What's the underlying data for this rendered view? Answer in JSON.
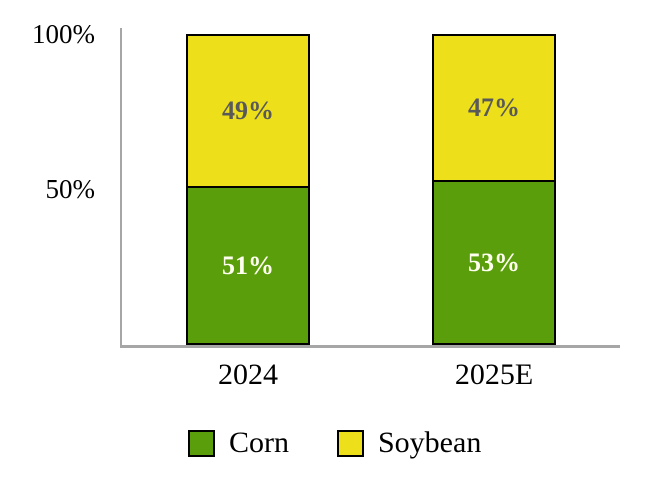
{
  "chart_data": {
    "type": "bar",
    "stacked": true,
    "unit": "%",
    "categories": [
      "2024",
      "2025E"
    ],
    "series": [
      {
        "name": "Corn",
        "color": "#5A9E0C",
        "label_color": "#FFFFF0",
        "values": [
          51,
          53
        ]
      },
      {
        "name": "Soybean",
        "color": "#EDE01B",
        "label_color": "#595959",
        "values": [
          49,
          47
        ]
      }
    ],
    "y_ticks": [
      "100%",
      "50%"
    ],
    "ylim": [
      0,
      100
    ],
    "axis_color": "#A6A6A6",
    "bar_border_color": "#000000",
    "grid": false,
    "legend_position": "bottom",
    "title": "",
    "xlabel": "",
    "ylabel": ""
  }
}
